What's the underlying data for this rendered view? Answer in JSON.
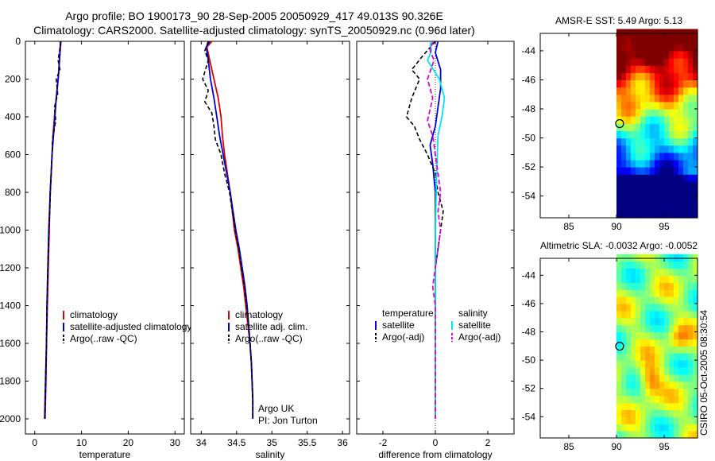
{
  "header": {
    "line1": "Argo profile: BO 1900173_90 28-Sep-2005 20050929_417 49.013S 90.326E",
    "line2": "Climatology: CARS2000. Satellite-adjusted climatology: synTS_20050929.nc (0.96d later)"
  },
  "side_label": "CSIRO 05-Oct-2005 08:30:54",
  "colors": {
    "climatology": "#e00000",
    "satellite": "#0000dd",
    "argo": "#000000",
    "sal_satellite": "#00e5e5",
    "sal_argo": "#dd00dd"
  },
  "chart_data": [
    {
      "type": "line",
      "name": "temperature-panel",
      "xlabel": "temperature",
      "ylabel": "",
      "xlim": [
        -2,
        32
      ],
      "ylim": [
        2080,
        0
      ],
      "xticks": [
        0,
        10,
        20,
        30
      ],
      "yticks": [
        0,
        200,
        400,
        600,
        800,
        1000,
        1200,
        1400,
        1600,
        1800,
        2000
      ],
      "legend": [
        "climatology",
        "satellite-adjusted climatology",
        "Argo(..raw -QC)"
      ],
      "series": [
        {
          "name": "climatology",
          "color": "climatology",
          "dash": "",
          "width": 1.8,
          "points": [
            [
              5.6,
              0
            ],
            [
              5.3,
              100
            ],
            [
              5.0,
              200
            ],
            [
              4.6,
              300
            ],
            [
              4.2,
              400
            ],
            [
              3.9,
              500
            ],
            [
              3.7,
              600
            ],
            [
              3.5,
              700
            ],
            [
              3.3,
              800
            ],
            [
              3.1,
              1000
            ],
            [
              2.9,
              1200
            ],
            [
              2.7,
              1400
            ],
            [
              2.5,
              1600
            ],
            [
              2.4,
              1800
            ],
            [
              2.2,
              2000
            ]
          ]
        },
        {
          "name": "satellite",
          "color": "satellite",
          "dash": "",
          "width": 1.8,
          "points": [
            [
              5.5,
              0
            ],
            [
              5.3,
              100
            ],
            [
              5.0,
              200
            ],
            [
              4.6,
              300
            ],
            [
              4.3,
              400
            ],
            [
              4.0,
              500
            ],
            [
              3.7,
              600
            ],
            [
              3.5,
              700
            ],
            [
              3.3,
              800
            ],
            [
              3.0,
              1000
            ],
            [
              2.8,
              1200
            ],
            [
              2.6,
              1400
            ],
            [
              2.5,
              1600
            ],
            [
              2.3,
              1800
            ],
            [
              2.1,
              2000
            ]
          ]
        },
        {
          "name": "argo",
          "color": "argo",
          "dash": "5,3",
          "width": 1.6,
          "points": [
            [
              5.6,
              0
            ],
            [
              5.0,
              100
            ],
            [
              5.4,
              150
            ],
            [
              4.6,
              200
            ],
            [
              4.9,
              280
            ],
            [
              4.2,
              350
            ],
            [
              4.5,
              420
            ],
            [
              3.8,
              520
            ],
            [
              3.7,
              620
            ],
            [
              3.4,
              750
            ],
            [
              3.2,
              900
            ],
            [
              3.0,
              1000
            ],
            [
              2.8,
              1200
            ],
            [
              2.6,
              1400
            ],
            [
              2.5,
              1600
            ],
            [
              2.3,
              1800
            ],
            [
              2.2,
              2000
            ]
          ]
        }
      ]
    },
    {
      "type": "line",
      "name": "salinity-panel",
      "xlabel": "salinity",
      "ylabel": "",
      "xlim": [
        33.85,
        36.1
      ],
      "ylim": [
        2080,
        0
      ],
      "xticks": [
        34,
        34.5,
        35,
        35.5,
        36
      ],
      "yticks": [
        0,
        200,
        400,
        600,
        800,
        1000,
        1200,
        1400,
        1600,
        1800,
        2000
      ],
      "legend": [
        "climatology",
        "satellite adj. clim.",
        "Argo(..raw -QC)"
      ],
      "annotations": [
        "Argo UK",
        "PI: Jon Turton"
      ],
      "series": [
        {
          "name": "climatology",
          "color": "climatology",
          "dash": "",
          "width": 1.8,
          "points": [
            [
              34.15,
              0
            ],
            [
              34.08,
              30
            ],
            [
              34.12,
              100
            ],
            [
              34.18,
              200
            ],
            [
              34.24,
              300
            ],
            [
              34.28,
              400
            ],
            [
              34.3,
              500
            ],
            [
              34.33,
              600
            ],
            [
              34.37,
              700
            ],
            [
              34.41,
              800
            ],
            [
              34.44,
              900
            ],
            [
              34.47,
              1000
            ],
            [
              34.52,
              1100
            ],
            [
              34.56,
              1200
            ],
            [
              34.6,
              1300
            ],
            [
              34.63,
              1400
            ],
            [
              34.66,
              1500
            ],
            [
              34.69,
              1600
            ],
            [
              34.71,
              1700
            ],
            [
              34.72,
              1800
            ],
            [
              34.73,
              1900
            ],
            [
              34.73,
              2000
            ]
          ]
        },
        {
          "name": "satellite",
          "color": "satellite",
          "dash": "",
          "width": 1.8,
          "points": [
            [
              34.12,
              0
            ],
            [
              34.07,
              30
            ],
            [
              34.1,
              100
            ],
            [
              34.13,
              200
            ],
            [
              34.18,
              300
            ],
            [
              34.22,
              400
            ],
            [
              34.26,
              500
            ],
            [
              34.31,
              600
            ],
            [
              34.36,
              700
            ],
            [
              34.41,
              800
            ],
            [
              34.45,
              900
            ],
            [
              34.49,
              1000
            ],
            [
              34.54,
              1100
            ],
            [
              34.58,
              1200
            ],
            [
              34.62,
              1300
            ],
            [
              34.65,
              1400
            ],
            [
              34.67,
              1500
            ],
            [
              34.69,
              1600
            ],
            [
              34.71,
              1700
            ],
            [
              34.72,
              1800
            ],
            [
              34.73,
              1900
            ],
            [
              34.73,
              2000
            ]
          ]
        },
        {
          "name": "argo",
          "color": "argo",
          "dash": "5,3",
          "width": 1.6,
          "points": [
            [
              34.1,
              0
            ],
            [
              34.05,
              50
            ],
            [
              34.1,
              100
            ],
            [
              34.02,
              200
            ],
            [
              34.1,
              260
            ],
            [
              34.05,
              320
            ],
            [
              34.15,
              380
            ],
            [
              34.18,
              450
            ],
            [
              34.2,
              520
            ],
            [
              34.28,
              600
            ],
            [
              34.33,
              700
            ],
            [
              34.4,
              800
            ],
            [
              34.44,
              900
            ],
            [
              34.48,
              1000
            ],
            [
              34.53,
              1100
            ],
            [
              34.57,
              1200
            ],
            [
              34.61,
              1300
            ],
            [
              34.64,
              1400
            ],
            [
              34.67,
              1500
            ],
            [
              34.69,
              1600
            ],
            [
              34.71,
              1700
            ],
            [
              34.72,
              1800
            ],
            [
              34.73,
              1900
            ],
            [
              34.73,
              2000
            ]
          ]
        }
      ]
    },
    {
      "type": "line",
      "name": "difference-panel",
      "xlabel": "difference from climatology",
      "ylabel": "",
      "xlim": [
        -3,
        3
      ],
      "ylim": [
        2080,
        0
      ],
      "xticks": [
        -2,
        0,
        2
      ],
      "yticks": [
        0,
        200,
        400,
        600,
        800,
        1000,
        1200,
        1400,
        1600,
        1800,
        2000
      ],
      "legend_temperature": {
        "heading": "temperature",
        "items": [
          "satellite",
          "Argo(-adj)"
        ]
      },
      "legend_salinity": {
        "heading": "salinity",
        "items": [
          "satellite",
          "Argo(-adj)"
        ]
      },
      "series": [
        {
          "name": "temperature satellite",
          "color": "satellite",
          "dash": "",
          "width": 1.8,
          "points": [
            [
              0.1,
              0
            ],
            [
              0.0,
              60
            ],
            [
              0.2,
              150
            ],
            [
              0.2,
              250
            ],
            [
              0.1,
              350
            ],
            [
              0.0,
              450
            ],
            [
              -0.2,
              550
            ],
            [
              -0.1,
              650
            ],
            [
              0.0,
              800
            ],
            [
              0.0,
              1000
            ],
            [
              0.0,
              1200
            ],
            [
              0.0,
              1400
            ],
            [
              0.0,
              1600
            ],
            [
              0.0,
              1800
            ],
            [
              0.0,
              2000
            ]
          ]
        },
        {
          "name": "temperature argo",
          "color": "argo",
          "dash": "5,3",
          "width": 1.6,
          "points": [
            [
              0.0,
              0
            ],
            [
              -0.5,
              80
            ],
            [
              -0.9,
              150
            ],
            [
              -0.6,
              200
            ],
            [
              -0.9,
              300
            ],
            [
              -1.1,
              400
            ],
            [
              -0.8,
              450
            ],
            [
              -0.6,
              520
            ],
            [
              -0.3,
              600
            ],
            [
              0.0,
              700
            ],
            [
              0.1,
              800
            ],
            [
              0.3,
              900
            ],
            [
              0.2,
              1000
            ],
            [
              0.1,
              1100
            ],
            [
              0.0,
              1200
            ],
            [
              0.0,
              1400
            ],
            [
              0.0,
              1600
            ],
            [
              0.0,
              1800
            ],
            [
              0.0,
              2000
            ]
          ]
        },
        {
          "name": "salinity satellite",
          "color": "sal_satellite",
          "dash": "",
          "width": 1.8,
          "points": [
            [
              -0.2,
              0
            ],
            [
              -0.15,
              50
            ],
            [
              -0.3,
              100
            ],
            [
              0.15,
              200
            ],
            [
              0.35,
              300
            ],
            [
              0.25,
              400
            ],
            [
              0.1,
              500
            ],
            [
              0.05,
              700
            ],
            [
              0.0,
              1000
            ],
            [
              0.0,
              1300
            ],
            [
              0.0,
              1600
            ],
            [
              0.0,
              2000
            ]
          ]
        },
        {
          "name": "salinity argo",
          "color": "sal_argo",
          "dash": "6,3",
          "width": 1.8,
          "points": [
            [
              -0.1,
              0
            ],
            [
              -0.2,
              50
            ],
            [
              -0.05,
              100
            ],
            [
              -0.3,
              200
            ],
            [
              -0.1,
              300
            ],
            [
              -0.3,
              420
            ],
            [
              -0.1,
              500
            ],
            [
              0.0,
              600
            ],
            [
              0.1,
              700
            ],
            [
              0.2,
              800
            ],
            [
              0.1,
              900
            ],
            [
              0.2,
              1000
            ],
            [
              0.1,
              1100
            ],
            [
              0.0,
              1200
            ],
            [
              -0.1,
              1300
            ],
            [
              0.0,
              1400
            ],
            [
              0.0,
              1500
            ],
            [
              0.0,
              1600
            ],
            [
              0.0,
              1700
            ],
            [
              0.0,
              1800
            ],
            [
              0.0,
              1900
            ],
            [
              0.0,
              2000
            ]
          ]
        }
      ]
    },
    {
      "type": "heatmap",
      "name": "sst-map",
      "title": "AMSR-E SST: 5.49 Argo: 5.13",
      "xlim": [
        82,
        98.5
      ],
      "ylim": [
        -55.5,
        -42.8
      ],
      "xticks": [
        85,
        90,
        95
      ],
      "yticks": [
        -44,
        -46,
        -48,
        -50,
        -52,
        -54
      ],
      "data_xrange": [
        90,
        98.5
      ],
      "colorscale": "jet",
      "pattern": "sst",
      "argo_position": [
        90.326,
        -49.013
      ]
    },
    {
      "type": "heatmap",
      "name": "sla-map",
      "title": "Altimetric SLA: -0.0032 Argo: -0.0052",
      "xlim": [
        82,
        98.5
      ],
      "ylim": [
        -55.5,
        -42.8
      ],
      "xticks": [
        85,
        90,
        95
      ],
      "yticks": [
        -44,
        -46,
        -48,
        -50,
        -52,
        -54
      ],
      "data_xrange": [
        90,
        98.5
      ],
      "colorscale": "jet",
      "pattern": "sla",
      "argo_position": [
        90.326,
        -49.013
      ]
    }
  ]
}
